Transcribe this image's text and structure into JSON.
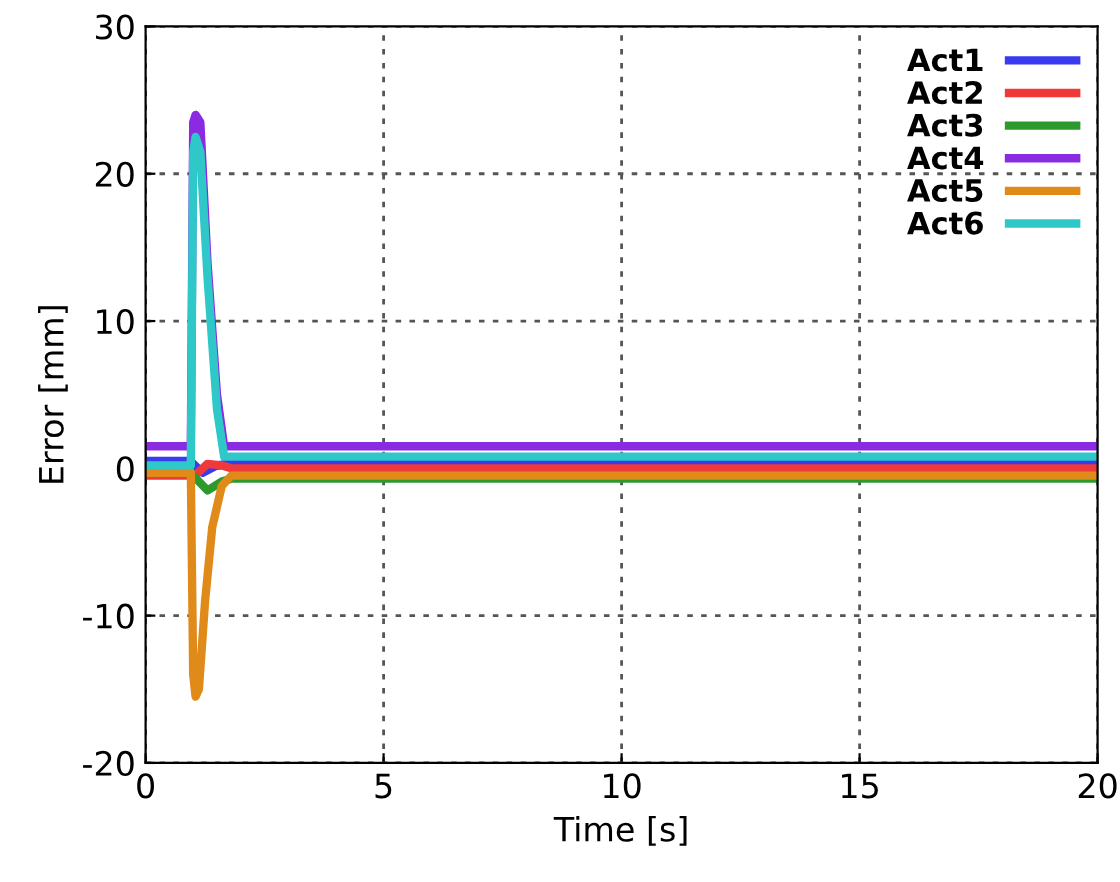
{
  "chart_data": {
    "type": "line",
    "xlabel": "Time [s]",
    "ylabel": "Error [mm]",
    "xlim": [
      0,
      20
    ],
    "ylim": [
      -20,
      30
    ],
    "xticks": [
      0,
      5,
      10,
      15,
      20
    ],
    "yticks": [
      -20,
      -10,
      0,
      10,
      20,
      30
    ],
    "grid": true,
    "legend": "top right",
    "line_style": "solid",
    "marker": "none",
    "series": [
      {
        "name": "Act1",
        "color": "#3a3af0",
        "x": [
          0,
          0.95,
          1.0,
          1.2,
          1.5,
          1.7,
          20
        ],
        "values": [
          0.5,
          0.5,
          0.3,
          -0.3,
          0.2,
          0.3,
          0.3
        ]
      },
      {
        "name": "Act2",
        "color": "#f03a3a",
        "x": [
          0,
          0.95,
          1.0,
          1.3,
          1.6,
          1.8,
          20
        ],
        "values": [
          -0.5,
          -0.5,
          -0.6,
          0.3,
          0.2,
          0,
          0
        ]
      },
      {
        "name": "Act3",
        "color": "#2e9a2e",
        "x": [
          0,
          0.95,
          1.0,
          1.3,
          1.6,
          1.8,
          20
        ],
        "values": [
          -0.3,
          -0.3,
          -0.5,
          -1.5,
          -0.9,
          -0.7,
          -0.7
        ]
      },
      {
        "name": "Act4",
        "color": "#8a2be2",
        "x": [
          0,
          0.95,
          1.0,
          1.05,
          1.15,
          1.3,
          1.5,
          1.65,
          20
        ],
        "values": [
          1.5,
          1.5,
          23.5,
          24,
          23.5,
          14,
          5,
          1.5,
          1.5
        ]
      },
      {
        "name": "Act5",
        "color": "#e08a1a",
        "x": [
          0,
          0.95,
          1.0,
          1.05,
          1.12,
          1.25,
          1.4,
          1.6,
          1.8,
          20
        ],
        "values": [
          -0.3,
          -0.3,
          -14,
          -15.5,
          -15,
          -9,
          -4,
          -1.2,
          -0.5,
          -0.5
        ]
      },
      {
        "name": "Act6",
        "color": "#2ec8c8",
        "x": [
          0,
          0.95,
          1.0,
          1.05,
          1.15,
          1.3,
          1.5,
          1.65,
          20
        ],
        "values": [
          0.2,
          0.2,
          21.5,
          22.5,
          21.5,
          13,
          4,
          0.8,
          0.8
        ]
      }
    ]
  }
}
